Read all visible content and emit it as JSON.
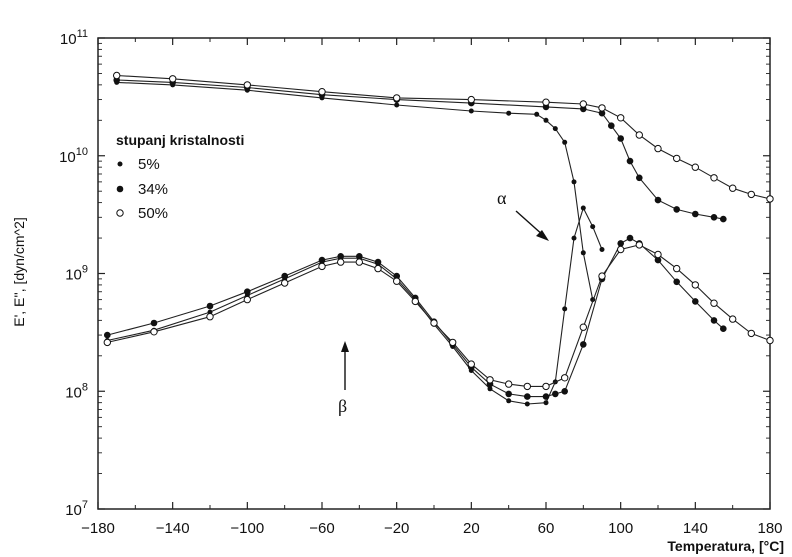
{
  "chart_data": {
    "type": "scatter",
    "title": "",
    "xlabel": "Temperatura, [°C]",
    "ylabel": "E', E'', [dyn/cm^2]",
    "xlim": [
      -180,
      180
    ],
    "ylim": [
      10000000.0,
      100000000000.0
    ],
    "yscale": "log",
    "x_ticks": [
      "-180",
      "-140",
      "-100",
      "-60",
      "-20",
      "20",
      "60",
      "100",
      "140",
      "180"
    ],
    "x_tick_values": [
      -180,
      -140,
      -100,
      -60,
      -20,
      20,
      60,
      100,
      140,
      180
    ],
    "y_tick_values": [
      10000000.0,
      100000000.0,
      1000000000.0,
      10000000000.0,
      100000000000.0
    ],
    "y_ticks": [
      {
        "base": "10",
        "exp": "7"
      },
      {
        "base": "10",
        "exp": "8"
      },
      {
        "base": "10",
        "exp": "9"
      },
      {
        "base": "10",
        "exp": "10"
      },
      {
        "base": "10",
        "exp": "11"
      }
    ],
    "legend": {
      "title": "stupanj kristalnosti",
      "placement": "upper-left",
      "entries": [
        {
          "label": "5%",
          "marker": "small-filled"
        },
        {
          "label": "34%",
          "marker": "filled"
        },
        {
          "label": "50%",
          "marker": "open"
        }
      ]
    },
    "annotations": [
      {
        "text": "α",
        "points_to": [
          80,
          2500000000.0
        ]
      },
      {
        "text": "β",
        "points_to": [
          -48,
          150000000.0
        ]
      }
    ],
    "series": [
      {
        "name": "5%",
        "curve": "E'",
        "x": [
          -170,
          -140,
          -100,
          -60,
          -20,
          20,
          40,
          55,
          60,
          65,
          70,
          75,
          80,
          85
        ],
        "y": [
          42000000000.0,
          40000000000.0,
          36000000000.0,
          31000000000.0,
          27000000000.0,
          24000000000.0,
          23000000000.0,
          22500000000.0,
          20000000000.0,
          17000000000.0,
          13000000000.0,
          6000000000.0,
          1500000000.0,
          600000000.0
        ]
      },
      {
        "name": "5%",
        "curve": "E''",
        "x": [
          -175,
          -150,
          -120,
          -100,
          -80,
          -60,
          -50,
          -40,
          -30,
          -20,
          -10,
          0,
          10,
          20,
          30,
          40,
          50,
          60,
          65,
          70,
          75,
          80,
          85,
          90
        ],
        "y": [
          270000000.0,
          330000000.0,
          470000000.0,
          650000000.0,
          900000000.0,
          1250000000.0,
          1350000000.0,
          1350000000.0,
          1200000000.0,
          900000000.0,
          600000000.0,
          370000000.0,
          240000000.0,
          150000000.0,
          105000000.0,
          83000000.0,
          78000000.0,
          80000000.0,
          120000000.0,
          500000000.0,
          2000000000.0,
          3600000000.0,
          2500000000.0,
          1600000000.0
        ]
      },
      {
        "name": "34%",
        "curve": "E'",
        "x": [
          -170,
          -140,
          -100,
          -60,
          -20,
          20,
          60,
          80,
          90,
          95,
          100,
          105,
          110,
          120,
          130,
          140,
          150,
          155
        ],
        "y": [
          44000000000.0,
          42000000000.0,
          38000000000.0,
          33000000000.0,
          30000000000.0,
          28000000000.0,
          26000000000.0,
          25000000000.0,
          23000000000.0,
          18000000000.0,
          14000000000.0,
          9000000000.0,
          6500000000.0,
          4200000000.0,
          3500000000.0,
          3200000000.0,
          3000000000.0,
          2900000000.0
        ]
      },
      {
        "name": "34%",
        "curve": "E''",
        "x": [
          -175,
          -150,
          -120,
          -100,
          -80,
          -60,
          -50,
          -40,
          -30,
          -20,
          -10,
          0,
          10,
          20,
          30,
          40,
          50,
          60,
          65,
          70,
          80,
          90,
          100,
          105,
          110,
          120,
          130,
          140,
          150,
          155
        ],
        "y": [
          300000000.0,
          380000000.0,
          530000000.0,
          700000000.0,
          950000000.0,
          1300000000.0,
          1400000000.0,
          1400000000.0,
          1250000000.0,
          950000000.0,
          620000000.0,
          390000000.0,
          250000000.0,
          160000000.0,
          115000000.0,
          95000000.0,
          90000000.0,
          90000000.0,
          95000000.0,
          100000000.0,
          250000000.0,
          900000000.0,
          1800000000.0,
          2000000000.0,
          1800000000.0,
          1300000000.0,
          850000000.0,
          580000000.0,
          400000000.0,
          340000000.0
        ]
      },
      {
        "name": "50%",
        "curve": "E'",
        "x": [
          -170,
          -140,
          -100,
          -60,
          -20,
          20,
          60,
          80,
          90,
          100,
          110,
          120,
          130,
          140,
          150,
          160,
          170,
          180
        ],
        "y": [
          48000000000.0,
          45000000000.0,
          40000000000.0,
          35000000000.0,
          31000000000.0,
          30000000000.0,
          28500000000.0,
          27500000000.0,
          25500000000.0,
          21000000000.0,
          15000000000.0,
          11500000000.0,
          9500000000.0,
          8000000000.0,
          6500000000.0,
          5300000000.0,
          4700000000.0,
          4300000000.0
        ]
      },
      {
        "name": "50%",
        "curve": "E''",
        "x": [
          -175,
          -150,
          -120,
          -100,
          -80,
          -60,
          -50,
          -40,
          -30,
          -20,
          -10,
          0,
          10,
          20,
          30,
          40,
          50,
          60,
          70,
          80,
          90,
          100,
          110,
          120,
          130,
          140,
          150,
          160,
          170,
          180
        ],
        "y": [
          260000000.0,
          320000000.0,
          430000000.0,
          600000000.0,
          830000000.0,
          1150000000.0,
          1250000000.0,
          1250000000.0,
          1100000000.0,
          860000000.0,
          580000000.0,
          380000000.0,
          260000000.0,
          170000000.0,
          125000000.0,
          115000000.0,
          110000000.0,
          110000000.0,
          130000000.0,
          350000000.0,
          950000000.0,
          1600000000.0,
          1750000000.0,
          1450000000.0,
          1100000000.0,
          800000000.0,
          560000000.0,
          410000000.0,
          310000000.0,
          270000000.0
        ]
      }
    ]
  }
}
